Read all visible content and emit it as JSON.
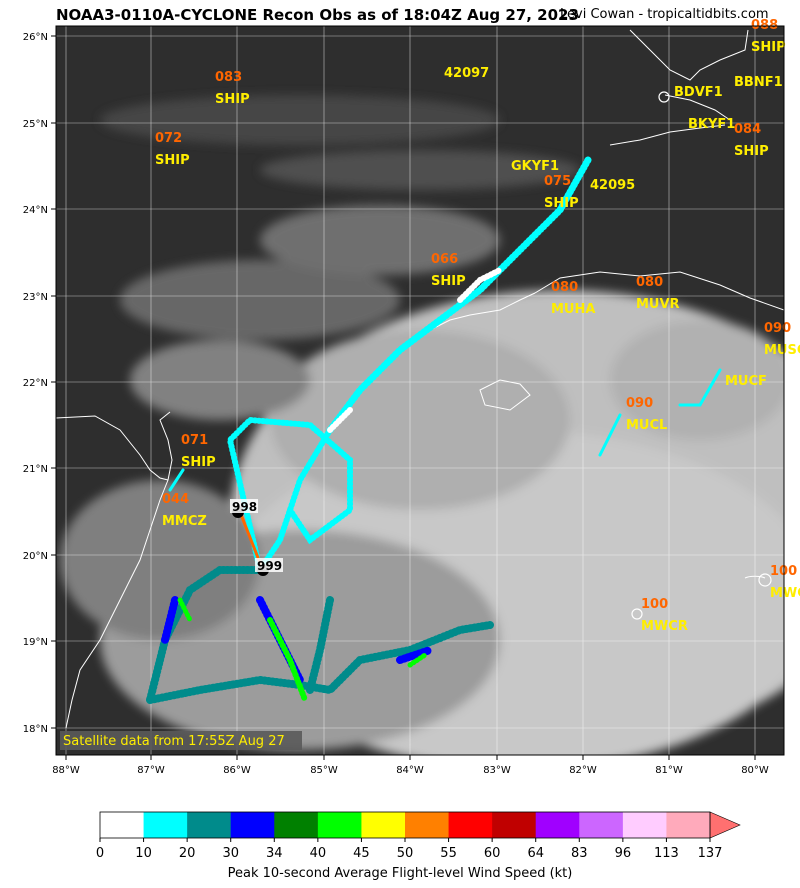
{
  "title": "NOAA3-0110A-CYCLONE Recon Obs as of 18:04Z Aug 27, 2023",
  "credit": "Levi Cowan - tropicaltidbits.com",
  "satellite_note": "Satellite data from 17:55Z Aug 27",
  "colors": {
    "ob_value": "#ff6600",
    "station": "#ffee00",
    "coast": "#ffffff",
    "grid": "#ffffff",
    "note_bg": "#5a5a5a",
    "note_text": "#ffee00"
  },
  "axes": {
    "lon_ticks": [
      "88°W",
      "87°W",
      "86°W",
      "85°W",
      "84°W",
      "83°W",
      "82°W",
      "81°W",
      "80°W"
    ],
    "lat_ticks": [
      "26°N",
      "25°N",
      "24°N",
      "23°N",
      "22°N",
      "21°N",
      "20°N",
      "19°N",
      "18°N"
    ]
  },
  "stations": [
    {
      "value": "088",
      "id": "SHIP"
    },
    {
      "value": "083",
      "id": "SHIP"
    },
    {
      "value": "",
      "id": "42097"
    },
    {
      "value": "",
      "id": "BDVF1"
    },
    {
      "value": "",
      "id": "BBNF1"
    },
    {
      "value": "072",
      "id": "SHIP"
    },
    {
      "value": "",
      "id": "BKYF1"
    },
    {
      "value": "084",
      "id": "SHIP"
    },
    {
      "value": "",
      "id": "GKYF1"
    },
    {
      "value": "075",
      "id": "SHIP"
    },
    {
      "value": "",
      "id": "42095"
    },
    {
      "value": "066",
      "id": "SHIP"
    },
    {
      "value": "080",
      "id": "MUHA"
    },
    {
      "value": "080",
      "id": "MUVR"
    },
    {
      "value": "090",
      "id": "MUSC"
    },
    {
      "value": "",
      "id": "MUCF"
    },
    {
      "value": "090",
      "id": "MUCL"
    },
    {
      "value": "071",
      "id": "SHIP"
    },
    {
      "value": "044",
      "id": "MMCZ"
    },
    {
      "value": "100",
      "id": "MWCR"
    },
    {
      "value": "100",
      "id": "MWCG"
    }
  ],
  "pressure_obs": [
    "998",
    "999"
  ],
  "colorbar": {
    "label": "Peak 10-second Average Flight-level Wind Speed (kt)",
    "ticks": [
      "0",
      "10",
      "20",
      "30",
      "34",
      "40",
      "45",
      "50",
      "55",
      "60",
      "64",
      "83",
      "96",
      "113",
      "137"
    ],
    "colors": [
      "#ffffff",
      "#00ffff",
      "#008b8b",
      "#0000ff",
      "#008000",
      "#00ff00",
      "#ffff00",
      "#ff8000",
      "#ff0000",
      "#c00000",
      "#a000ff",
      "#cc66ff",
      "#ffccff",
      "#ffaabb"
    ],
    "extend_color": "#ff7070"
  }
}
